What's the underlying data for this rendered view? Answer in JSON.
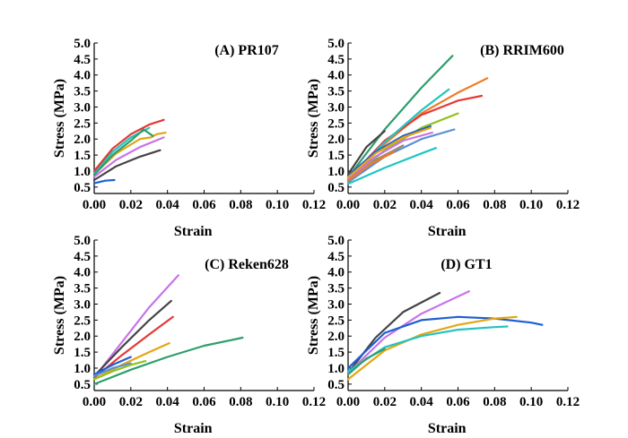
{
  "chart_data": [
    {
      "type": "line",
      "title": "(A) PR107",
      "xlabel": "Strain",
      "ylabel": "Stress (MPa)",
      "xlim": [
        0,
        0.12
      ],
      "ylim": [
        0.3,
        5.0
      ],
      "xticks": [
        "0.00",
        "0.02",
        "0.04",
        "0.06",
        "0.08",
        "0.10",
        "0.12"
      ],
      "yticks": [
        "0.5",
        "1.0",
        "1.5",
        "2.0",
        "2.5",
        "3.0",
        "3.5",
        "4.0",
        "4.5",
        "5.0"
      ],
      "grid": false,
      "series": [
        {
          "color": "#1f5fd1",
          "x": [
            0.0,
            0.006,
            0.011
          ],
          "y": [
            0.62,
            0.7,
            0.72
          ]
        },
        {
          "color": "#444444",
          "x": [
            0.0,
            0.012,
            0.025,
            0.036
          ],
          "y": [
            0.72,
            1.15,
            1.45,
            1.65
          ]
        },
        {
          "color": "#c774e8",
          "x": [
            0.0,
            0.012,
            0.025,
            0.038
          ],
          "y": [
            0.82,
            1.35,
            1.75,
            2.05
          ]
        },
        {
          "color": "#e5a512",
          "x": [
            0.0,
            0.012,
            0.025,
            0.031,
            0.034,
            0.039
          ],
          "y": [
            0.9,
            1.55,
            2.0,
            2.05,
            2.15,
            2.2
          ]
        },
        {
          "color": "#21c4c4",
          "x": [
            0.0,
            0.01,
            0.02,
            0.03
          ],
          "y": [
            0.95,
            1.6,
            2.05,
            2.35
          ]
        },
        {
          "color": "#2e9e6b",
          "x": [
            0.0,
            0.01,
            0.02,
            0.027,
            0.032
          ],
          "y": [
            0.88,
            1.5,
            1.95,
            2.3,
            2.1
          ]
        },
        {
          "color": "#e53935",
          "x": [
            0.0,
            0.01,
            0.02,
            0.03,
            0.038
          ],
          "y": [
            1.0,
            1.7,
            2.15,
            2.45,
            2.6
          ]
        }
      ]
    },
    {
      "type": "line",
      "title": "(B) RRIM600",
      "xlabel": "Strain",
      "ylabel": "Stress (MPa)",
      "xlim": [
        0,
        0.12
      ],
      "ylim": [
        0.3,
        5.0
      ],
      "xticks": [
        "0.00",
        "0.02",
        "0.04",
        "0.06",
        "0.08",
        "0.10",
        "0.12"
      ],
      "yticks": [
        "0.5",
        "1.0",
        "1.5",
        "2.0",
        "2.5",
        "3.0",
        "3.5",
        "4.0",
        "4.5",
        "5.0"
      ],
      "grid": false,
      "series": [
        {
          "color": "#2e9e6b",
          "x": [
            0.0,
            0.02,
            0.04,
            0.057
          ],
          "y": [
            0.8,
            2.3,
            3.6,
            4.6
          ]
        },
        {
          "color": "#f07a24",
          "x": [
            0.0,
            0.02,
            0.04,
            0.06,
            0.076
          ],
          "y": [
            0.7,
            1.85,
            2.8,
            3.45,
            3.9
          ]
        },
        {
          "color": "#e53935",
          "x": [
            0.0,
            0.02,
            0.04,
            0.06,
            0.073
          ],
          "y": [
            0.75,
            1.95,
            2.75,
            3.2,
            3.35
          ]
        },
        {
          "color": "#21c4c4",
          "x": [
            0.0,
            0.02,
            0.04,
            0.055
          ],
          "y": [
            0.75,
            1.9,
            2.9,
            3.55
          ]
        },
        {
          "color": "#8fc31f",
          "x": [
            0.0,
            0.02,
            0.04,
            0.06
          ],
          "y": [
            0.7,
            1.65,
            2.35,
            2.8
          ]
        },
        {
          "color": "#5b8fd6",
          "x": [
            0.0,
            0.02,
            0.04,
            0.058
          ],
          "y": [
            0.65,
            1.45,
            2.0,
            2.3
          ]
        },
        {
          "color": "#444444",
          "x": [
            0.0,
            0.01,
            0.02
          ],
          "y": [
            0.9,
            1.75,
            2.25
          ]
        },
        {
          "color": "#1f5fd1",
          "x": [
            0.0,
            0.015,
            0.03,
            0.045
          ],
          "y": [
            0.85,
            1.6,
            2.1,
            2.4
          ]
        },
        {
          "color": "#c774e8",
          "x": [
            0.0,
            0.015,
            0.03,
            0.046
          ],
          "y": [
            0.75,
            1.45,
            1.95,
            2.2
          ]
        },
        {
          "color": "#e5a512",
          "x": [
            0.0,
            0.015,
            0.03,
            0.045
          ],
          "y": [
            0.8,
            1.55,
            2.05,
            2.35
          ]
        },
        {
          "color": "#9e8b6e",
          "x": [
            0.0,
            0.015,
            0.03
          ],
          "y": [
            0.7,
            1.35,
            1.8
          ]
        },
        {
          "color": "#21c4c4",
          "x": [
            0.0,
            0.02,
            0.04,
            0.048
          ],
          "y": [
            0.6,
            1.1,
            1.55,
            1.72
          ]
        },
        {
          "color": "#f07a24",
          "x": [
            0.0,
            0.012,
            0.025
          ],
          "y": [
            0.7,
            1.2,
            1.6
          ]
        }
      ]
    },
    {
      "type": "line",
      "title": "(C) Reken628",
      "xlabel": "Strain",
      "ylabel": "Stress (MPa)",
      "xlim": [
        0,
        0.12
      ],
      "ylim": [
        0.3,
        5.0
      ],
      "xticks": [
        "0.00",
        "0.02",
        "0.04",
        "0.06",
        "0.08",
        "0.10",
        "0.12"
      ],
      "yticks": [
        "0.5",
        "1.0",
        "1.5",
        "2.0",
        "2.5",
        "3.0",
        "3.5",
        "4.0",
        "4.5",
        "5.0"
      ],
      "grid": false,
      "series": [
        {
          "color": "#c774e8",
          "x": [
            0.0,
            0.015,
            0.03,
            0.046
          ],
          "y": [
            0.7,
            1.8,
            2.9,
            3.9
          ]
        },
        {
          "color": "#444444",
          "x": [
            0.0,
            0.015,
            0.03,
            0.042
          ],
          "y": [
            0.75,
            1.65,
            2.5,
            3.1
          ]
        },
        {
          "color": "#e53935",
          "x": [
            0.0,
            0.015,
            0.03,
            0.043
          ],
          "y": [
            0.7,
            1.4,
            2.05,
            2.6
          ]
        },
        {
          "color": "#e5a512",
          "x": [
            0.0,
            0.015,
            0.03,
            0.041
          ],
          "y": [
            0.65,
            1.1,
            1.5,
            1.78
          ]
        },
        {
          "color": "#2e9e6b",
          "x": [
            0.0,
            0.02,
            0.04,
            0.06,
            0.081
          ],
          "y": [
            0.5,
            0.95,
            1.35,
            1.7,
            1.95
          ]
        },
        {
          "color": "#1f5fd1",
          "x": [
            0.0,
            0.01,
            0.02
          ],
          "y": [
            0.8,
            1.1,
            1.35
          ]
        },
        {
          "color": "#5b8fd6",
          "x": [
            0.0,
            0.01,
            0.02
          ],
          "y": [
            0.75,
            1.0,
            1.15
          ]
        },
        {
          "color": "#8fc31f",
          "x": [
            0.0,
            0.01,
            0.02,
            0.028
          ],
          "y": [
            0.65,
            0.9,
            1.1,
            1.22
          ]
        }
      ]
    },
    {
      "type": "line",
      "title": "(D) GT1",
      "xlabel": "Strain",
      "ylabel": "Stress (MPa)",
      "xlim": [
        0,
        0.12
      ],
      "ylim": [
        0.3,
        5.0
      ],
      "xticks": [
        "0.00",
        "0.02",
        "0.04",
        "0.06",
        "0.08",
        "0.10",
        "0.12"
      ],
      "yticks": [
        "0.5",
        "1.0",
        "1.5",
        "2.0",
        "2.5",
        "3.0",
        "3.5",
        "4.0",
        "4.5",
        "5.0"
      ],
      "grid": false,
      "series": [
        {
          "color": "#444444",
          "x": [
            0.0,
            0.015,
            0.03,
            0.05
          ],
          "y": [
            0.85,
            1.95,
            2.75,
            3.35
          ]
        },
        {
          "color": "#c774e8",
          "x": [
            0.0,
            0.02,
            0.04,
            0.066
          ],
          "y": [
            0.85,
            1.95,
            2.7,
            3.4
          ]
        },
        {
          "color": "#1f5fd1",
          "x": [
            0.0,
            0.02,
            0.04,
            0.06,
            0.08,
            0.1,
            0.106
          ],
          "y": [
            1.0,
            2.1,
            2.5,
            2.6,
            2.55,
            2.42,
            2.35
          ]
        },
        {
          "color": "#e5a512",
          "x": [
            0.0,
            0.02,
            0.04,
            0.06,
            0.08,
            0.092
          ],
          "y": [
            0.65,
            1.55,
            2.05,
            2.35,
            2.55,
            2.6
          ]
        },
        {
          "color": "#21c4c4",
          "x": [
            0.0,
            0.02,
            0.04,
            0.06,
            0.08,
            0.087
          ],
          "y": [
            0.9,
            1.65,
            2.0,
            2.2,
            2.28,
            2.3
          ]
        },
        {
          "color": "#2e9e6b",
          "x": [
            0.0,
            0.01,
            0.02
          ],
          "y": [
            0.8,
            1.3,
            1.6
          ]
        }
      ]
    }
  ]
}
